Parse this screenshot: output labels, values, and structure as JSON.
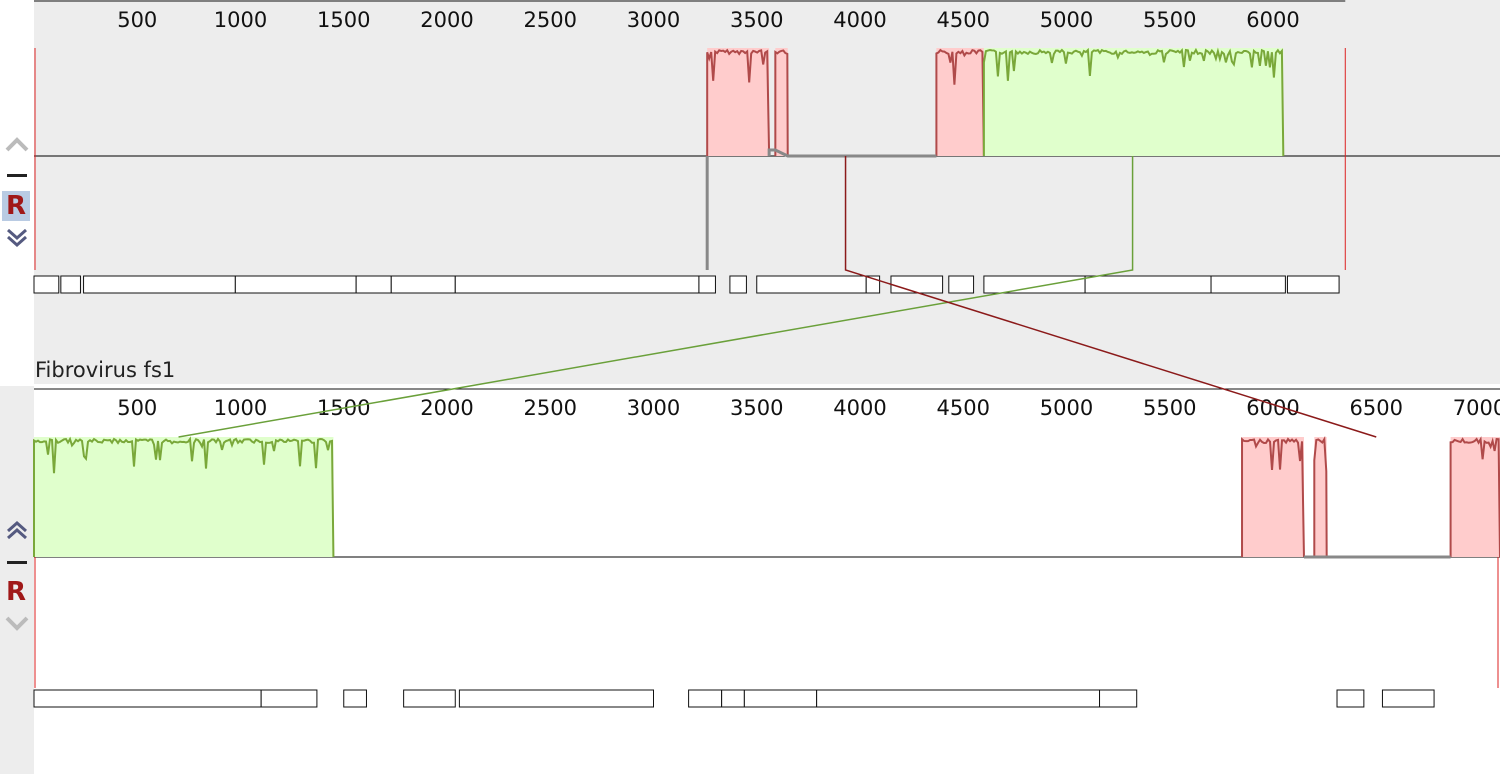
{
  "genomes": [
    {
      "id": "top",
      "label": "",
      "ruler": {
        "ticks": [
          500,
          1000,
          1500,
          2000,
          2500,
          3000,
          3500,
          4000,
          4500,
          5000,
          5500,
          6000
        ],
        "length": 6350
      },
      "controls": {
        "up_icon": "chevron-up-icon",
        "minus_icon": "minus-icon",
        "reverse_label": "R",
        "down_icon": "double-chevron-down-icon"
      },
      "blocks": [
        {
          "color": "#ffcccc",
          "line": "#b04a4a",
          "start": 3260,
          "end": 3560
        },
        {
          "color": "#ffcccc",
          "line": "#b04a4a",
          "start": 3590,
          "end": 3650
        },
        {
          "color": "#ffcccc",
          "line": "#b04a4a",
          "start": 4370,
          "end": 4600
        },
        {
          "color": "#e0ffcc",
          "line": "#7aa83a",
          "start": 4600,
          "end": 6050
        }
      ],
      "genes": [
        {
          "start": 0,
          "end": 120
        },
        {
          "start": 130,
          "end": 225
        },
        {
          "start": 240,
          "end": 975
        },
        {
          "start": 975,
          "end": 1560
        },
        {
          "start": 1560,
          "end": 1730
        },
        {
          "start": 1730,
          "end": 2040
        },
        {
          "start": 2040,
          "end": 3220
        },
        {
          "start": 3220,
          "end": 3300
        },
        {
          "start": 3370,
          "end": 3450
        },
        {
          "start": 3500,
          "end": 4030
        },
        {
          "start": 4030,
          "end": 4095
        },
        {
          "start": 4150,
          "end": 4400
        },
        {
          "start": 4430,
          "end": 4550
        },
        {
          "start": 4600,
          "end": 5090
        },
        {
          "start": 5090,
          "end": 5700
        },
        {
          "start": 5700,
          "end": 6060
        },
        {
          "start": 6070,
          "end": 6320
        }
      ]
    },
    {
      "id": "bottom",
      "label": "Fibrovirus fs1",
      "ruler": {
        "ticks": [
          500,
          1000,
          1500,
          2000,
          2500,
          3000,
          3500,
          4000,
          4500,
          5000,
          5500,
          6000,
          6500,
          7000
        ],
        "length": 7100
      },
      "controls": {
        "up_icon": "double-chevron-up-icon",
        "minus_icon": "minus-icon",
        "reverse_label": "R",
        "down_icon": "chevron-down-icon"
      },
      "blocks": [
        {
          "color": "#e0ffcc",
          "line": "#7aa83a",
          "start": 0,
          "end": 1450
        },
        {
          "color": "#ffcccc",
          "line": "#b04a4a",
          "start": 5850,
          "end": 6150
        },
        {
          "color": "#ffcccc",
          "line": "#b04a4a",
          "start": 6200,
          "end": 6260
        },
        {
          "color": "#ffcccc",
          "line": "#b04a4a",
          "start": 6860,
          "end": 7100
        }
      ],
      "genes": [
        {
          "start": 0,
          "end": 1100
        },
        {
          "start": 1100,
          "end": 1370
        },
        {
          "start": 1500,
          "end": 1610
        },
        {
          "start": 1790,
          "end": 2040
        },
        {
          "start": 2060,
          "end": 3000
        },
        {
          "start": 3170,
          "end": 3330
        },
        {
          "start": 3330,
          "end": 3440
        },
        {
          "start": 3440,
          "end": 3790
        },
        {
          "start": 3790,
          "end": 5160
        },
        {
          "start": 5160,
          "end": 5340
        },
        {
          "start": 6310,
          "end": 6440
        },
        {
          "start": 6530,
          "end": 6780
        }
      ]
    }
  ],
  "connectors": [
    {
      "color": "#6aa03a",
      "from": 5320,
      "to": 700
    },
    {
      "color": "#8b1a1a",
      "from": 3930,
      "to": 6500
    }
  ],
  "colors": {
    "red_block": "#ffcccc",
    "green_block": "#e0ffcc",
    "red_line": "#b04a4a",
    "green_line": "#7aa83a",
    "gray_line": "#888888"
  }
}
